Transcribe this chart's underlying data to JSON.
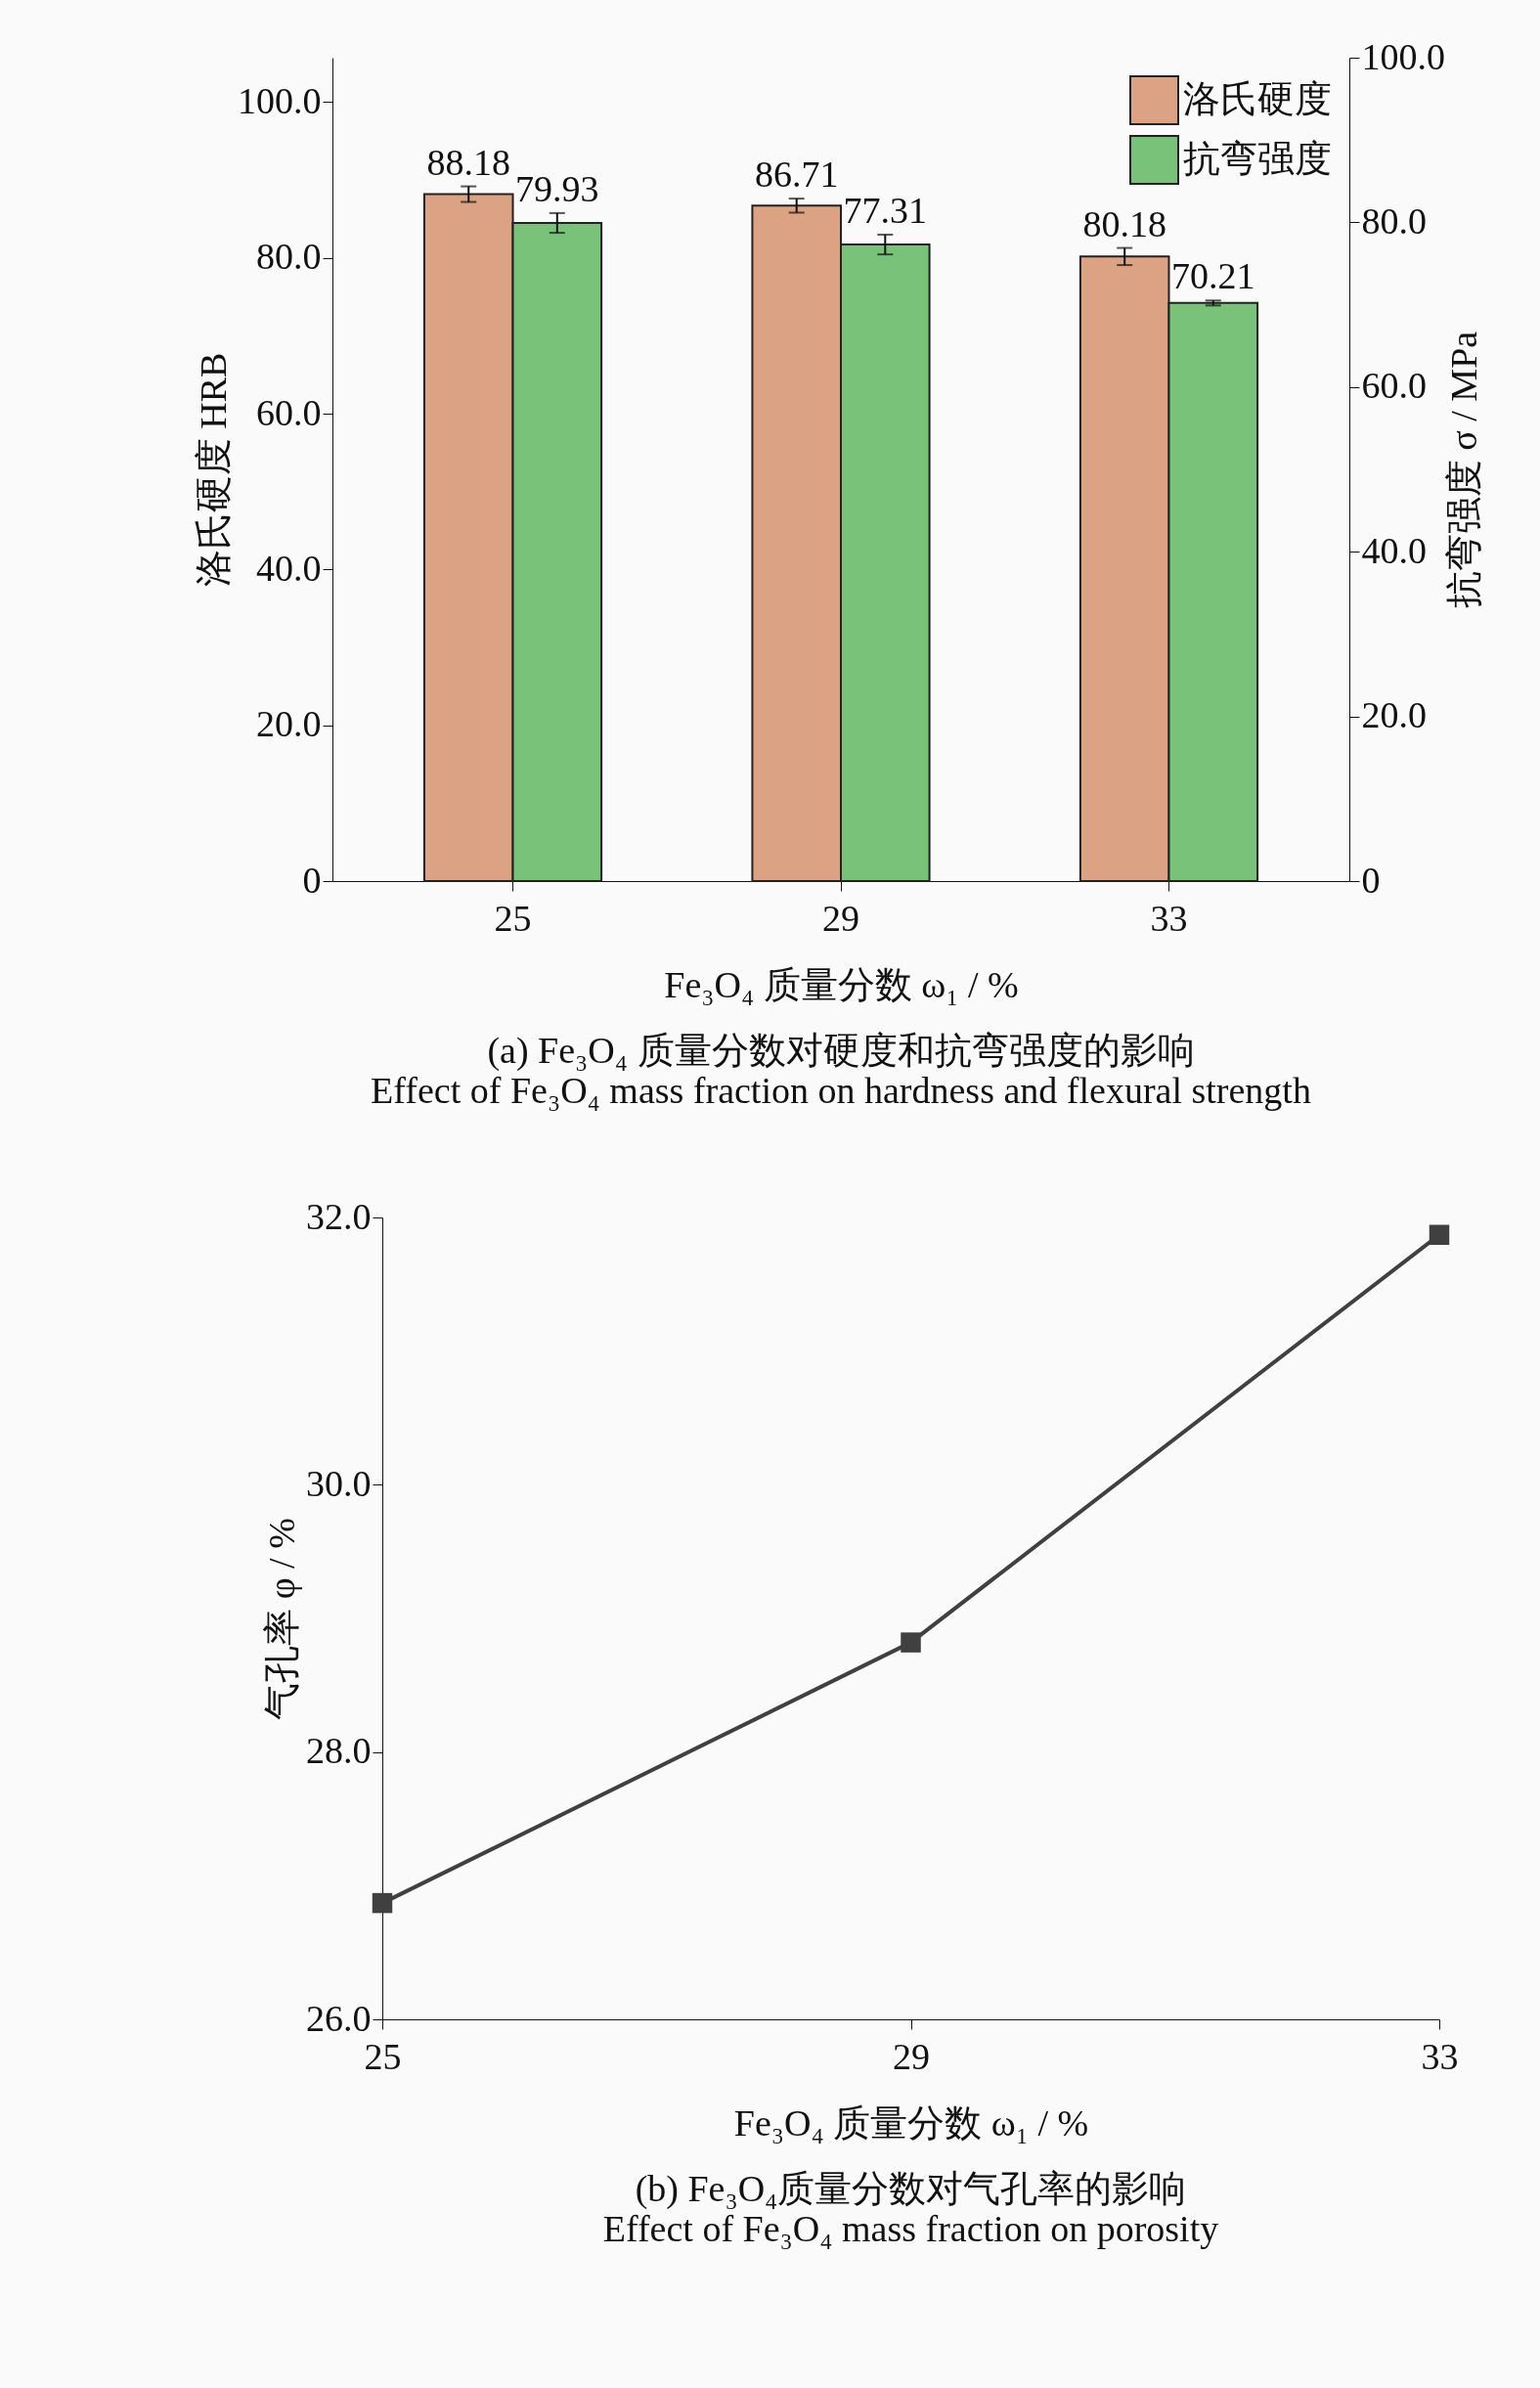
{
  "chart_data": [
    {
      "type": "bar",
      "title": "(a) Fe₃O₄ 质量分数对硬度和抗弯强度的影响",
      "subtitle": "Effect of Fe₃O₄ mass fraction on hardness and flexural strength",
      "xlabel": "Fe₃O₄ 质量分数 ω₁ / %",
      "ylabel": "洛氏硬度 HRB",
      "y2label": "抗弯强度 σ / MPa",
      "categories": [
        "25",
        "29",
        "33"
      ],
      "series": [
        {
          "name": "洛氏硬度",
          "color": "#dba283",
          "values": [
            88.18,
            86.71,
            80.18
          ],
          "errors": [
            1.0,
            0.9,
            1.1
          ]
        },
        {
          "name": "抗弯强度",
          "color": "#79c27a",
          "values": [
            79.93,
            77.31,
            70.21
          ],
          "errors": [
            1.2,
            1.2,
            0.3
          ],
          "axis": "y2"
        }
      ],
      "ylim": [
        0,
        105.7
      ],
      "yticks": [
        0,
        {
          "value": 20,
          "label": "20.0"
        },
        {
          "value": 40,
          "label": "40.0"
        },
        {
          "value": 60,
          "label": "60.0"
        },
        {
          "value": 80,
          "label": "80.0"
        },
        {
          "value": 100,
          "label": "100.0"
        }
      ],
      "y2lim": [
        0,
        100
      ],
      "y2ticks": [
        0,
        {
          "value": 20,
          "label": "20.0"
        },
        {
          "value": 40,
          "label": "40.0"
        },
        {
          "value": 60,
          "label": "60.0"
        },
        {
          "value": 80,
          "label": "80.0"
        },
        {
          "value": 100,
          "label": "100.0"
        }
      ],
      "data_labels": true,
      "legend": "top right"
    },
    {
      "type": "line",
      "title": "(b) Fe₃O₄质量分数对气孔率的影响",
      "subtitle": "Effect of Fe₃O₄ mass fraction on porosity",
      "xlabel": "Fe₃O₄ 质量分数 ω₁ / %",
      "ylabel": "气孔率 φ / %",
      "x": [
        25,
        29,
        33
      ],
      "series": [
        {
          "color": "#404040",
          "values": [
            26.87,
            28.82,
            31.87
          ]
        }
      ],
      "xlim": [
        25,
        33
      ],
      "xticks": [
        25,
        29,
        33
      ],
      "ylim": [
        26,
        32
      ],
      "yticks": [
        {
          "value": 26,
          "label": "26.0"
        },
        {
          "value": 28,
          "label": "28.0"
        },
        {
          "value": 30,
          "label": "30.0"
        },
        {
          "value": 32,
          "label": "32.0"
        }
      ],
      "marker": "square",
      "line_style": "solid"
    }
  ]
}
